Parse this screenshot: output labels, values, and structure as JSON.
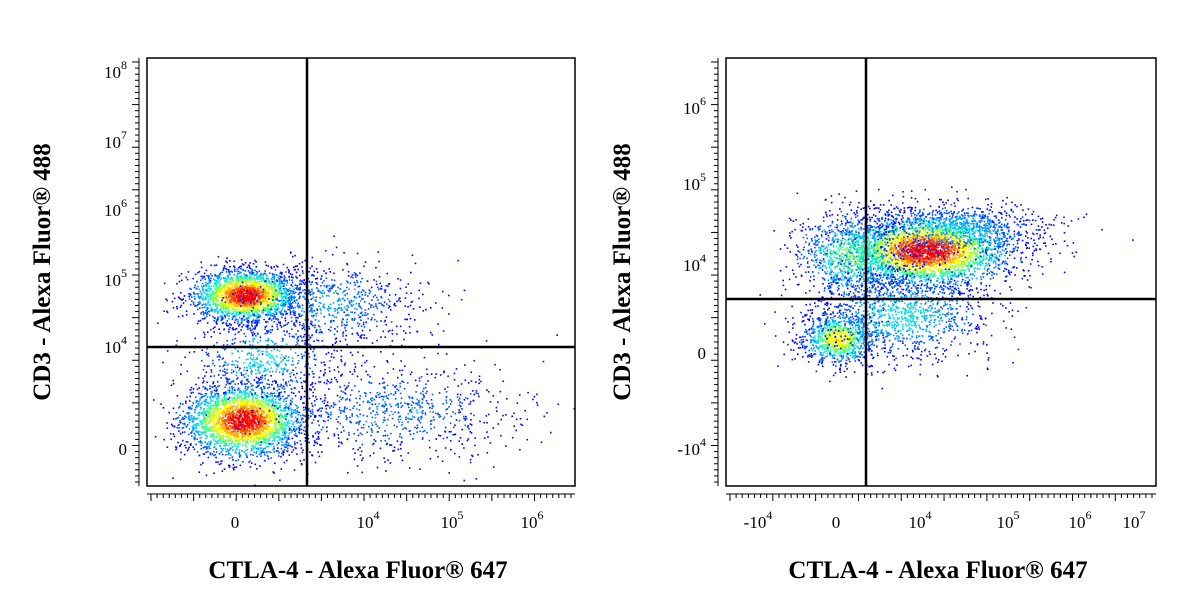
{
  "chart_data": [
    {
      "type": "scatter",
      "style": "flow-cytometry density dot plot with quadrant gates",
      "xlabel": "CTLA-4 - Alexa Fluor® 647",
      "ylabel": "CD3 - Alexa Fluor® 488",
      "x_scale": "biexponential",
      "y_scale": "biexponential",
      "x_ticks": [
        {
          "base": "0",
          "exp": ""
        },
        {
          "base": "10",
          "exp": "4"
        },
        {
          "base": "10",
          "exp": "5"
        },
        {
          "base": "10",
          "exp": "6"
        }
      ],
      "y_ticks": [
        {
          "base": "0",
          "exp": ""
        },
        {
          "base": "10",
          "exp": "4"
        },
        {
          "base": "10",
          "exp": "5"
        },
        {
          "base": "10",
          "exp": "6"
        },
        {
          "base": "10",
          "exp": "7"
        },
        {
          "base": "10",
          "exp": "8"
        }
      ],
      "gate": {
        "x": 2000,
        "y": 10000
      },
      "populations": [
        {
          "name": "CD3+ CTLA-4-",
          "x": 0,
          "y": 55000,
          "density": "high"
        },
        {
          "name": "CD3- CTLA-4-",
          "x": 0,
          "y": 100,
          "density": "high"
        },
        {
          "name": "CD3+ CTLA-4+ tail",
          "x": 6000,
          "y": 30000,
          "density": "low"
        },
        {
          "name": "CD3- CTLA-4+ tail",
          "x": 15000,
          "y": 200,
          "density": "low"
        }
      ]
    },
    {
      "type": "scatter",
      "style": "flow-cytometry density dot plot with quadrant gates",
      "xlabel": "CTLA-4 - Alexa Fluor® 647",
      "ylabel": "CD3 - Alexa Fluor® 488",
      "x_scale": "biexponential",
      "y_scale": "biexponential",
      "x_ticks": [
        {
          "base": "-10",
          "exp": "4"
        },
        {
          "base": "0",
          "exp": ""
        },
        {
          "base": "10",
          "exp": "4"
        },
        {
          "base": "10",
          "exp": "5"
        },
        {
          "base": "10",
          "exp": "6"
        },
        {
          "base": "10",
          "exp": "7"
        }
      ],
      "y_ticks": [
        {
          "base": "-10",
          "exp": "4"
        },
        {
          "base": "0",
          "exp": ""
        },
        {
          "base": "10",
          "exp": "4"
        },
        {
          "base": "10",
          "exp": "5"
        },
        {
          "base": "10",
          "exp": "6"
        }
      ],
      "gate": {
        "x": 2000,
        "y": 3000
      },
      "populations": [
        {
          "name": "CD3+ CTLA-4+",
          "x": 12000,
          "y": 12000,
          "density": "high"
        },
        {
          "name": "CD3- CTLA-4-",
          "x": 0,
          "y": 0,
          "density": "medium"
        }
      ]
    }
  ]
}
